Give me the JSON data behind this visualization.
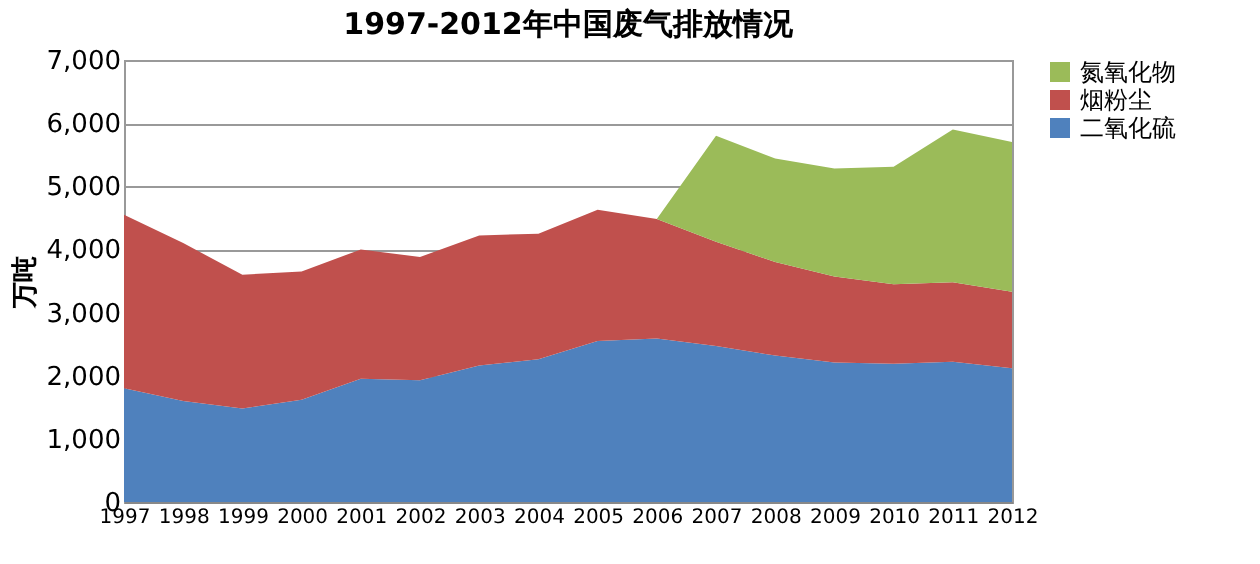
{
  "chart_data": {
    "type": "area",
    "stacked": true,
    "title": "1997-2012年中国废气排放情况",
    "ylabel": "万吨",
    "categories": [
      "1997",
      "1998",
      "1999",
      "2000",
      "2001",
      "2002",
      "2003",
      "2004",
      "2005",
      "2006",
      "2007",
      "2008",
      "2009",
      "2010",
      "2011",
      "2012"
    ],
    "series": [
      {
        "name": "二氧化硫",
        "color": "#4f81bd",
        "values": [
          1800,
          1600,
          1480,
          1620,
          1950,
          1930,
          2160,
          2260,
          2550,
          2590,
          2470,
          2320,
          2210,
          2190,
          2220,
          2120
        ]
      },
      {
        "name": "烟粉尘",
        "color": "#c0504d",
        "values": [
          2750,
          2500,
          2120,
          2030,
          2050,
          1950,
          2060,
          1990,
          2080,
          1890,
          1650,
          1480,
          1360,
          1260,
          1260,
          1210
        ]
      },
      {
        "name": "氮氧化物",
        "color": "#9bbb59",
        "values": [
          null,
          null,
          null,
          null,
          null,
          null,
          null,
          null,
          null,
          0,
          1680,
          1640,
          1710,
          1860,
          2420,
          2370
        ]
      }
    ],
    "ylim": [
      0,
      7000
    ],
    "yticks": [
      {
        "value": 0,
        "label": "0"
      },
      {
        "value": 1000,
        "label": "1,000"
      },
      {
        "value": 2000,
        "label": "2,000"
      },
      {
        "value": 3000,
        "label": "3,000"
      },
      {
        "value": 4000,
        "label": "4,000"
      },
      {
        "value": 5000,
        "label": "5,000"
      },
      {
        "value": 6000,
        "label": "6,000"
      },
      {
        "value": 7000,
        "label": "7,000"
      }
    ],
    "grid": "y",
    "legend": "right"
  }
}
